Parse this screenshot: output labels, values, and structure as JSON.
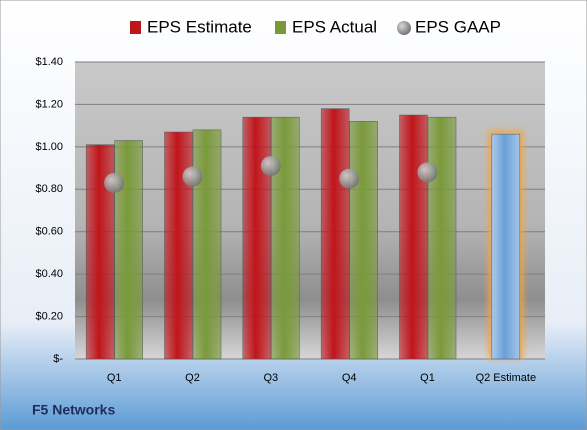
{
  "chart_data": {
    "type": "bar",
    "title": "F5 Networks",
    "categories": [
      "Q1",
      "Q2",
      "Q3",
      "Q4",
      "Q1",
      "Q2 Estimate"
    ],
    "series": [
      {
        "name": "EPS Estimate",
        "color": "#c0151b",
        "highlight_color": "#6a9fd8",
        "values": [
          1.01,
          1.07,
          1.14,
          1.18,
          1.15,
          1.06
        ]
      },
      {
        "name": "EPS Actual",
        "color": "#7a9a3a",
        "values": [
          1.03,
          1.08,
          1.14,
          1.12,
          1.14,
          null
        ]
      },
      {
        "name": "EPS GAAP",
        "color": "#8a8a8a",
        "values": [
          0.83,
          0.86,
          0.91,
          0.85,
          0.88,
          null
        ]
      }
    ],
    "ylim": [
      0,
      1.4
    ],
    "yticks": [
      {
        "value": 0,
        "label": "$-"
      },
      {
        "value": 0.2,
        "label": "$0.20"
      },
      {
        "value": 0.4,
        "label": "$0.40"
      },
      {
        "value": 0.6,
        "label": "$0.60"
      },
      {
        "value": 0.8,
        "label": "$0.80"
      },
      {
        "value": 1.0,
        "label": "$1.00"
      },
      {
        "value": 1.2,
        "label": "$1.20"
      },
      {
        "value": 1.4,
        "label": "$1.40"
      }
    ],
    "grid": true
  }
}
